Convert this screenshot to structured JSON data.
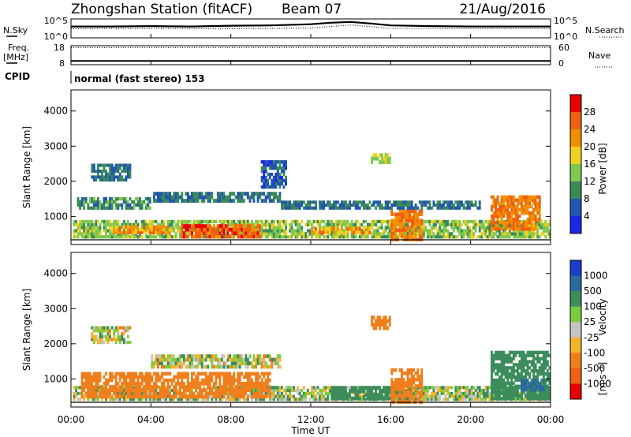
{
  "header": {
    "station": "Zhongshan Station (fitACF)",
    "beam": "Beam 07",
    "date": "21/Aug/2016"
  },
  "sky_panel": {
    "left_label": "N.Sky",
    "right_label": "N.Search",
    "left_ticks": [
      "10^5",
      "10^0"
    ],
    "right_ticks": [
      "10^5",
      "10^0"
    ]
  },
  "freq_panel": {
    "left_label_line1": "Freq.",
    "left_label_line2": "[MHz]",
    "left_ticks": [
      "18",
      "8"
    ],
    "right_ticks": [
      "60",
      "0"
    ],
    "right_label": "Nave"
  },
  "cpid_panel": {
    "label": "CPID",
    "text": "normal (fast stereo) 153"
  },
  "time_axis": {
    "label": "Time UT",
    "ticks": [
      "00:00",
      "04:00",
      "08:00",
      "12:00",
      "16:00",
      "20:00",
      "00:00"
    ]
  },
  "range_axis": {
    "label": "Slant Range [km]",
    "ticks": [
      "1000",
      "2000",
      "3000",
      "4000"
    ]
  },
  "power_scale": {
    "label": "Power [dB]",
    "ticks": [
      "4",
      "8",
      "12",
      "16",
      "20",
      "24",
      "28"
    ],
    "colors": [
      "#1a28e6",
      "#2255b0",
      "#3a8a58",
      "#80c850",
      "#f0d020",
      "#f09000",
      "#f06010",
      "#e80000"
    ]
  },
  "velocity_scale": {
    "label": "Velocity",
    "unit": "[m s⁻¹]",
    "ticks": [
      "1000",
      "500",
      "100",
      "25",
      "-25",
      "-100",
      "-500",
      "-1000"
    ],
    "colors": [
      "#1e3ccc",
      "#2a6a9c",
      "#3c8c5c",
      "#7acc3c",
      "#c4c4c0",
      "#f4b428",
      "#f07e1c",
      "#f06010",
      "#e80000"
    ]
  },
  "chart_data": [
    {
      "type": "line",
      "title": "Zhongshan Station (fitACF) Beam 07 21/Aug/2016",
      "ylabel": "N.Sky",
      "series": [
        {
          "name": "N.Sky",
          "x": [
            0,
            2,
            4,
            6,
            8,
            10,
            12,
            13,
            14,
            15,
            16,
            18,
            20,
            22,
            24
          ],
          "values": [
            3,
            3,
            3.1,
            3,
            3.2,
            3.3,
            3.6,
            4,
            4.2,
            3.8,
            3.3,
            3.1,
            3,
            3,
            3
          ]
        },
        {
          "name": "N.Search",
          "x": [
            0,
            4,
            8,
            12,
            14,
            16,
            20,
            24
          ],
          "values": [
            2.4,
            2.5,
            2.4,
            2.6,
            3.4,
            2.5,
            2.4,
            2.4
          ]
        }
      ]
    },
    {
      "type": "scatter",
      "ylabel": "Freq. [MHz]",
      "ylim": [
        8,
        18
      ],
      "series": [
        {
          "name": "Freq.",
          "x": [
            0,
            4,
            8,
            12,
            16,
            20,
            24
          ],
          "values": [
            10,
            10,
            10,
            10,
            10,
            10,
            10
          ]
        },
        {
          "name": "Nave",
          "x": [
            0,
            4,
            8,
            12,
            16,
            20,
            24
          ],
          "values": [
            17,
            17,
            17,
            17,
            17,
            17,
            17
          ]
        }
      ]
    },
    {
      "type": "heatmap",
      "title": "Power [dB]",
      "xlabel": "Time UT",
      "ylabel": "Slant Range [km]",
      "xlim": [
        0,
        24
      ],
      "ylim": [
        200,
        4600
      ],
      "clim": [
        0,
        32
      ],
      "regions": [
        {
          "t0": 0.1,
          "t1": 24,
          "r0": 380,
          "r1": 900,
          "value": 14
        },
        {
          "t0": 5.5,
          "t1": 9.5,
          "r0": 380,
          "r1": 780,
          "value": 26
        },
        {
          "t0": 2,
          "t1": 5,
          "r0": 500,
          "r1": 750,
          "value": 22
        },
        {
          "t0": 12,
          "t1": 15,
          "r0": 500,
          "r1": 700,
          "value": 22
        },
        {
          "t0": 16,
          "t1": 17.6,
          "r0": 300,
          "r1": 1200,
          "value": 24
        },
        {
          "t0": 21,
          "t1": 23.5,
          "r0": 600,
          "r1": 1600,
          "value": 24
        },
        {
          "t0": 1,
          "t1": 3,
          "r0": 2000,
          "r1": 2500,
          "value": 8
        },
        {
          "t0": 0.3,
          "t1": 4,
          "r0": 1200,
          "r1": 1550,
          "value": 10
        },
        {
          "t0": 4,
          "t1": 10.5,
          "r0": 1400,
          "r1": 1700,
          "value": 8
        },
        {
          "t0": 9.5,
          "t1": 10.8,
          "r0": 1800,
          "r1": 2600,
          "value": 6
        },
        {
          "t0": 10.5,
          "t1": 20.5,
          "r0": 1200,
          "r1": 1450,
          "value": 8
        },
        {
          "t0": 15,
          "t1": 16,
          "r0": 2500,
          "r1": 2800,
          "value": 16
        }
      ]
    },
    {
      "type": "heatmap",
      "title": "Velocity [m s⁻¹]",
      "xlabel": "Time UT",
      "ylabel": "Slant Range [km]",
      "xlim": [
        0,
        24
      ],
      "ylim": [
        200,
        4600
      ],
      "clim": [
        -1000,
        1000
      ],
      "regions": [
        {
          "t0": 0.1,
          "t1": 24,
          "r0": 380,
          "r1": 800,
          "value": 60
        },
        {
          "t0": 0.5,
          "t1": 10,
          "r0": 450,
          "r1": 1200,
          "value": -300
        },
        {
          "t0": 1,
          "t1": 3,
          "r0": 2000,
          "r1": 2500,
          "value": 10
        },
        {
          "t0": 4,
          "t1": 10.5,
          "r0": 1300,
          "r1": 1700,
          "value": 10
        },
        {
          "t0": 13,
          "t1": 17,
          "r0": 400,
          "r1": 800,
          "value": 300
        },
        {
          "t0": 16,
          "t1": 17.6,
          "r0": 300,
          "r1": 1300,
          "value": -300
        },
        {
          "t0": 21,
          "t1": 24,
          "r0": 400,
          "r1": 1800,
          "value": 300
        },
        {
          "t0": 22.5,
          "t1": 23.7,
          "r0": 650,
          "r1": 1000,
          "value": 800
        },
        {
          "t0": 15,
          "t1": 16,
          "r0": 2400,
          "r1": 2800,
          "value": -300
        }
      ]
    }
  ]
}
